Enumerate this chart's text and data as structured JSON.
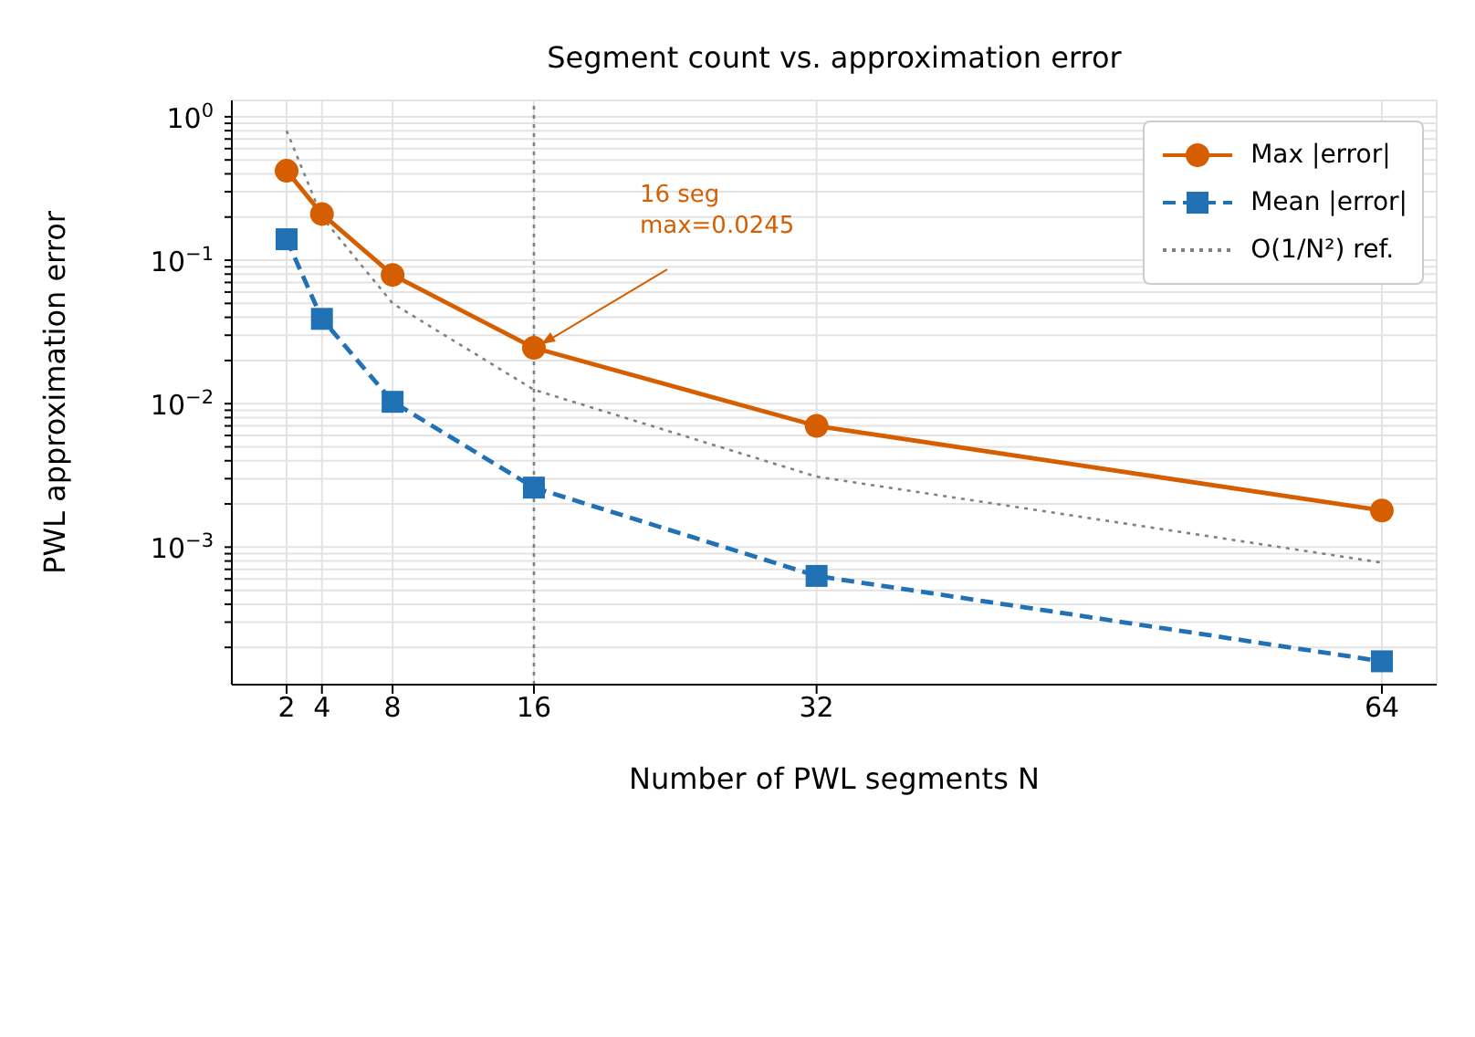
{
  "chart_data": {
    "type": "line",
    "title": "Segment count vs. approximation error",
    "xlabel": "Number of PWL segments N",
    "ylabel": "PWL approximation error",
    "x": [
      2,
      4,
      8,
      16,
      32,
      64
    ],
    "series": [
      {
        "name": "Max |error|",
        "color": "#d55e00",
        "values": [
          0.42,
          0.21,
          0.079,
          0.0245,
          0.007,
          0.0018
        ],
        "marker": "circle",
        "line_style": "solid"
      },
      {
        "name": "Mean |error|",
        "color": "#2171b5",
        "values": [
          0.14,
          0.039,
          0.0103,
          0.0026,
          0.00063,
          0.00016
        ],
        "marker": "square",
        "line_style": "dashed"
      },
      {
        "name": "O(1/N²) ref.",
        "color": "#808080",
        "values": [
          0.8,
          0.2,
          0.05,
          0.0125,
          0.0031,
          0.00078
        ],
        "marker": "none",
        "line_style": "dotted"
      }
    ],
    "log": "y",
    "xlim": [
      -1.1,
      67.1
    ],
    "ylim": [
      0.00011,
      1.3
    ],
    "xticks": [
      2,
      4,
      8,
      16,
      32,
      64
    ],
    "yticks": [
      {
        "value": 0.0002,
        "label": null
      },
      {
        "value": 0.0003,
        "label": null
      },
      {
        "value": 0.0004,
        "label": null
      },
      {
        "value": 0.0005,
        "label": null
      },
      {
        "value": 0.0006,
        "label": null
      },
      {
        "value": 0.0007,
        "label": null
      },
      {
        "value": 0.0008,
        "label": null
      },
      {
        "value": 0.0009,
        "label": null
      },
      {
        "value": 0.001,
        "label": "10$^{−3}$"
      },
      {
        "value": 0.002,
        "label": null
      },
      {
        "value": 0.003,
        "label": null
      },
      {
        "value": 0.004,
        "label": null
      },
      {
        "value": 0.005,
        "label": null
      },
      {
        "value": 0.006,
        "label": null
      },
      {
        "value": 0.007,
        "label": null
      },
      {
        "value": 0.008,
        "label": null
      },
      {
        "value": 0.009,
        "label": null
      },
      {
        "value": 0.01,
        "label": "10$^{−2}$"
      },
      {
        "value": 0.02,
        "label": null
      },
      {
        "value": 0.03,
        "label": null
      },
      {
        "value": 0.04,
        "label": null
      },
      {
        "value": 0.05,
        "label": null
      },
      {
        "value": 0.06,
        "label": null
      },
      {
        "value": 0.07,
        "label": null
      },
      {
        "value": 0.08,
        "label": null
      },
      {
        "value": 0.09,
        "label": null
      },
      {
        "value": 0.1,
        "label": "10$^{−1}$"
      },
      {
        "value": 0.2,
        "label": null
      },
      {
        "value": 0.3,
        "label": null
      },
      {
        "value": 0.4,
        "label": null
      },
      {
        "value": 0.5,
        "label": null
      },
      {
        "value": 0.6,
        "label": null
      },
      {
        "value": 0.7,
        "label": null
      },
      {
        "value": 0.8,
        "label": null
      },
      {
        "value": 0.9,
        "label": null
      },
      {
        "value": 1,
        "label": "10$^{0}$"
      }
    ],
    "grid": true,
    "legend": "top right",
    "ref_lines": [
      {
        "axis": "x",
        "value": 16,
        "color": "#808080",
        "line_style": "dotted"
      }
    ],
    "annotations": [
      {
        "text": "16 seg\nmax=0.0245",
        "x": 16,
        "y": 0.0245
      }
    ]
  }
}
